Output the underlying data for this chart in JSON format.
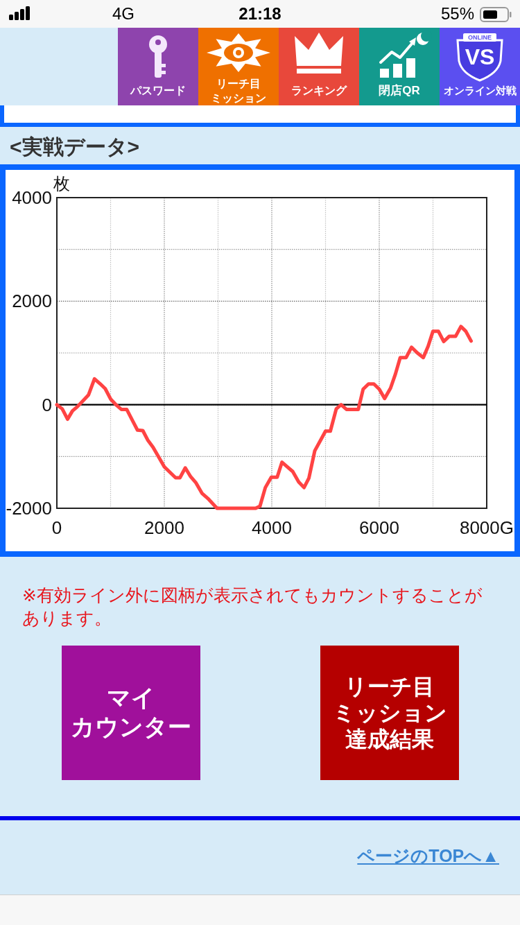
{
  "chart_data": {
    "type": "line",
    "title": "<実戦データ>",
    "ylabel": "枚",
    "x": [
      0,
      100,
      200,
      290,
      380,
      490,
      590,
      700,
      810,
      900,
      1000,
      1110,
      1200,
      1300,
      1400,
      1500,
      1600,
      1690,
      1790,
      1900,
      2000,
      2110,
      2210,
      2290,
      2390,
      2490,
      2590,
      2700,
      2810,
      2980,
      3700,
      3780,
      3880,
      3990,
      4100,
      4190,
      4290,
      4390,
      4500,
      4600,
      4690,
      4800,
      4900,
      5000,
      5090,
      5200,
      5290,
      5390,
      5500,
      5610,
      5700,
      5800,
      5900,
      6000,
      6100,
      6210,
      6300,
      6390,
      6500,
      6600,
      6710,
      6820,
      6910,
      7000,
      7100,
      7200,
      7300,
      7420,
      7520,
      7610,
      7710
    ],
    "series": [
      {
        "color": "#ff4343",
        "values": [
          0,
          -80,
          -280,
          -120,
          -40,
          80,
          190,
          500,
          400,
          310,
          110,
          -10,
          -90,
          -90,
          -290,
          -490,
          -500,
          -680,
          -820,
          -1020,
          -1200,
          -1310,
          -1410,
          -1410,
          -1220,
          -1390,
          -1510,
          -1710,
          -1810,
          -2000,
          -2000,
          -1960,
          -1600,
          -1400,
          -1400,
          -1110,
          -1200,
          -1290,
          -1490,
          -1600,
          -1420,
          -890,
          -700,
          -510,
          -510,
          -80,
          0,
          -90,
          -90,
          -90,
          300,
          400,
          400,
          300,
          120,
          320,
          590,
          910,
          910,
          1110,
          1000,
          910,
          1130,
          1420,
          1420,
          1220,
          1320,
          1320,
          1510,
          1420,
          1230
        ]
      }
    ],
    "xlim": [
      0,
      8000
    ],
    "ylim": [
      -2000,
      4000
    ],
    "xticks": [
      0,
      2000,
      4000,
      6000,
      {
        "value": 8000,
        "label": "8000G"
      }
    ],
    "yticks": [
      -2000,
      0,
      2000,
      4000
    ],
    "grid": true,
    "line_style": "solid",
    "ref_lines": [
      {
        "axis": "y",
        "value": 0,
        "color": "#000000"
      }
    ],
    "annotations": [
      "4G",
      "21:18",
      "55%",
      "パスワード",
      "リーチ目",
      "ミッション",
      "ランキング",
      "閉店QR",
      "ONLINE",
      "VS",
      "オンライン対戦",
      "※有効ライン外に図柄が表示されてもカウントすることがあります。",
      "マイ",
      "カウンター",
      "リーチ目",
      "ミッション",
      "達成結果",
      "ページのTOPへ▲"
    ]
  }
}
